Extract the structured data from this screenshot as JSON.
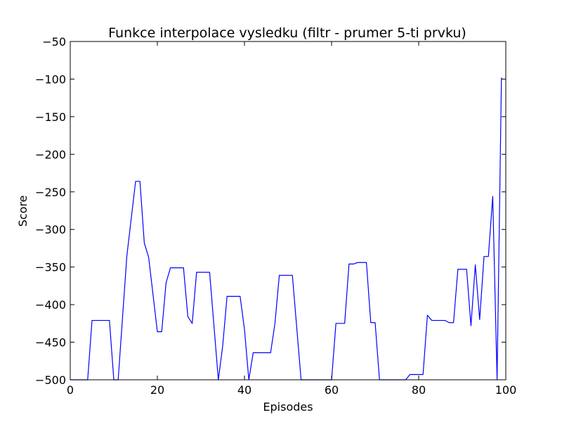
{
  "chart_data": {
    "type": "line",
    "title": "Funkce interpolace vysledku (filtr - prumer 5-ti prvku)",
    "xlabel": "Episodes",
    "ylabel": "Score",
    "xlim": [
      0,
      100
    ],
    "ylim": [
      -500,
      -50
    ],
    "xticks": [
      0,
      20,
      40,
      60,
      80,
      100
    ],
    "yticks": [
      -500,
      -450,
      -400,
      -350,
      -300,
      -250,
      -200,
      -150,
      -100,
      -50
    ],
    "xtick_labels": [
      "0",
      "20",
      "40",
      "60",
      "80",
      "100"
    ],
    "ytick_labels": [
      "−500",
      "−450",
      "−400",
      "−350",
      "−300",
      "−250",
      "−200",
      "−150",
      "−100",
      "−50"
    ],
    "grid": false,
    "line_color": "#0000ff",
    "series": [
      {
        "x": [
          0,
          4,
          5,
          9,
          10,
          11,
          13,
          15,
          16,
          17,
          18,
          20,
          21,
          22,
          23,
          26,
          27,
          28,
          29,
          32,
          34,
          35,
          36,
          39,
          40,
          41,
          42,
          46,
          47,
          48,
          51,
          53,
          60,
          61,
          63,
          64,
          65,
          66,
          68,
          69,
          70,
          71,
          77,
          78,
          81,
          82,
          83,
          86,
          87,
          88,
          89,
          91,
          92,
          93,
          94,
          95,
          96,
          97,
          98,
          99
        ],
        "y": [
          -500,
          -500,
          -421,
          -421,
          -500,
          -500,
          -335,
          -236,
          -236,
          -318,
          -337,
          -436,
          -436,
          -371,
          -351,
          -351,
          -416,
          -425,
          -357,
          -357,
          -500,
          -455,
          -389,
          -389,
          -433,
          -500,
          -464,
          -464,
          -425,
          -361,
          -361,
          -500,
          -500,
          -425,
          -425,
          -346,
          -346,
          -344,
          -344,
          -424,
          -424,
          -500,
          -500,
          -493,
          -493,
          -414,
          -421,
          -421,
          -424,
          -424,
          -353,
          -353,
          -428,
          -347,
          -420,
          -336,
          -336,
          -256,
          -500,
          -98
        ]
      }
    ]
  }
}
